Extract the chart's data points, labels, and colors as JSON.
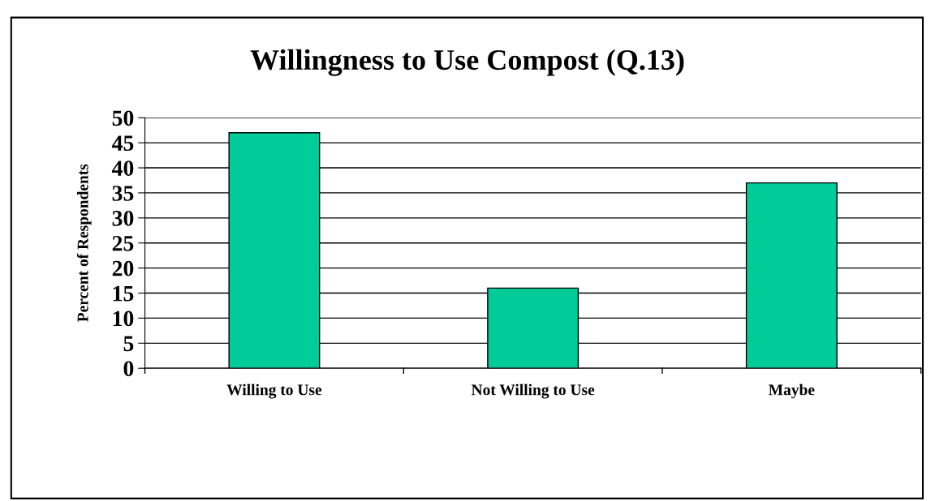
{
  "chart_data": {
    "type": "bar",
    "title": "Willingness to Use Compost (Q.13)",
    "ylabel": "Percent of Respondents",
    "categories": [
      "Willing to Use",
      "Not Willing to Use",
      "Maybe"
    ],
    "values": [
      47,
      16,
      37
    ],
    "color": "#00cc99",
    "ylim": [
      0,
      50
    ],
    "yticks": [
      0,
      5,
      10,
      15,
      20,
      25,
      30,
      35,
      40,
      45,
      50
    ],
    "grid": "y",
    "legend": false
  }
}
